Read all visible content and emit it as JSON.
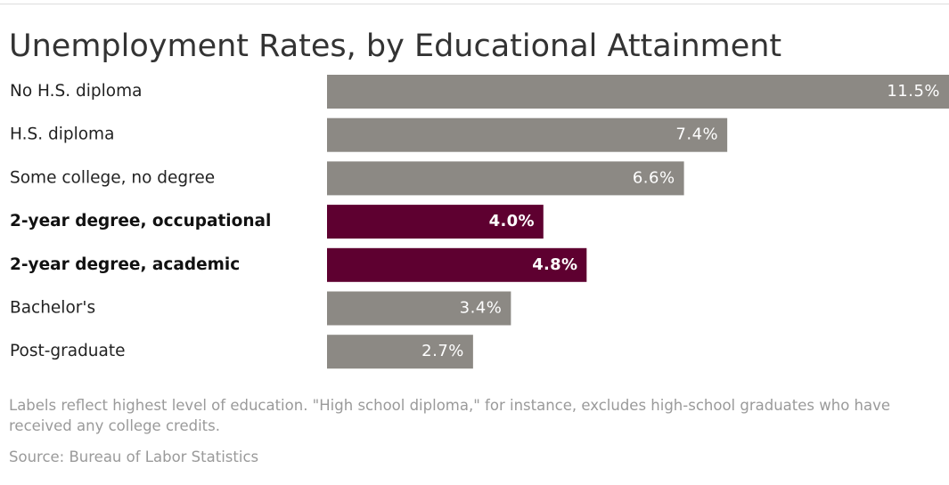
{
  "title": "Unemployment Rates, by Educational Attainment",
  "footnote": "Labels reflect highest level of education. \"High school diploma,\" for instance, excludes high-school graduates who have received any college credits.",
  "source": "Source: Bureau of Labor Statistics",
  "colors": {
    "default_bar": "#8c8984",
    "highlight_bar": "#5e0030"
  },
  "chart_data": {
    "type": "bar",
    "orientation": "horizontal",
    "title": "Unemployment Rates, by Educational Attainment",
    "xlabel": "",
    "ylabel": "",
    "grid": false,
    "xlim": [
      0,
      11.5
    ],
    "categories": [
      "No H.S. diploma",
      "H.S. diploma",
      "Some college, no degree",
      "2-year degree, occupational",
      "2-year degree, academic",
      "Bachelor's",
      "Post-graduate"
    ],
    "values": [
      11.5,
      7.4,
      6.6,
      4.0,
      4.8,
      3.4,
      2.7
    ],
    "value_labels": [
      "11.5%",
      "7.4%",
      "6.6%",
      "4.0%",
      "4.8%",
      "3.4%",
      "2.7%"
    ],
    "highlighted": [
      false,
      false,
      false,
      true,
      true,
      false,
      false
    ]
  }
}
